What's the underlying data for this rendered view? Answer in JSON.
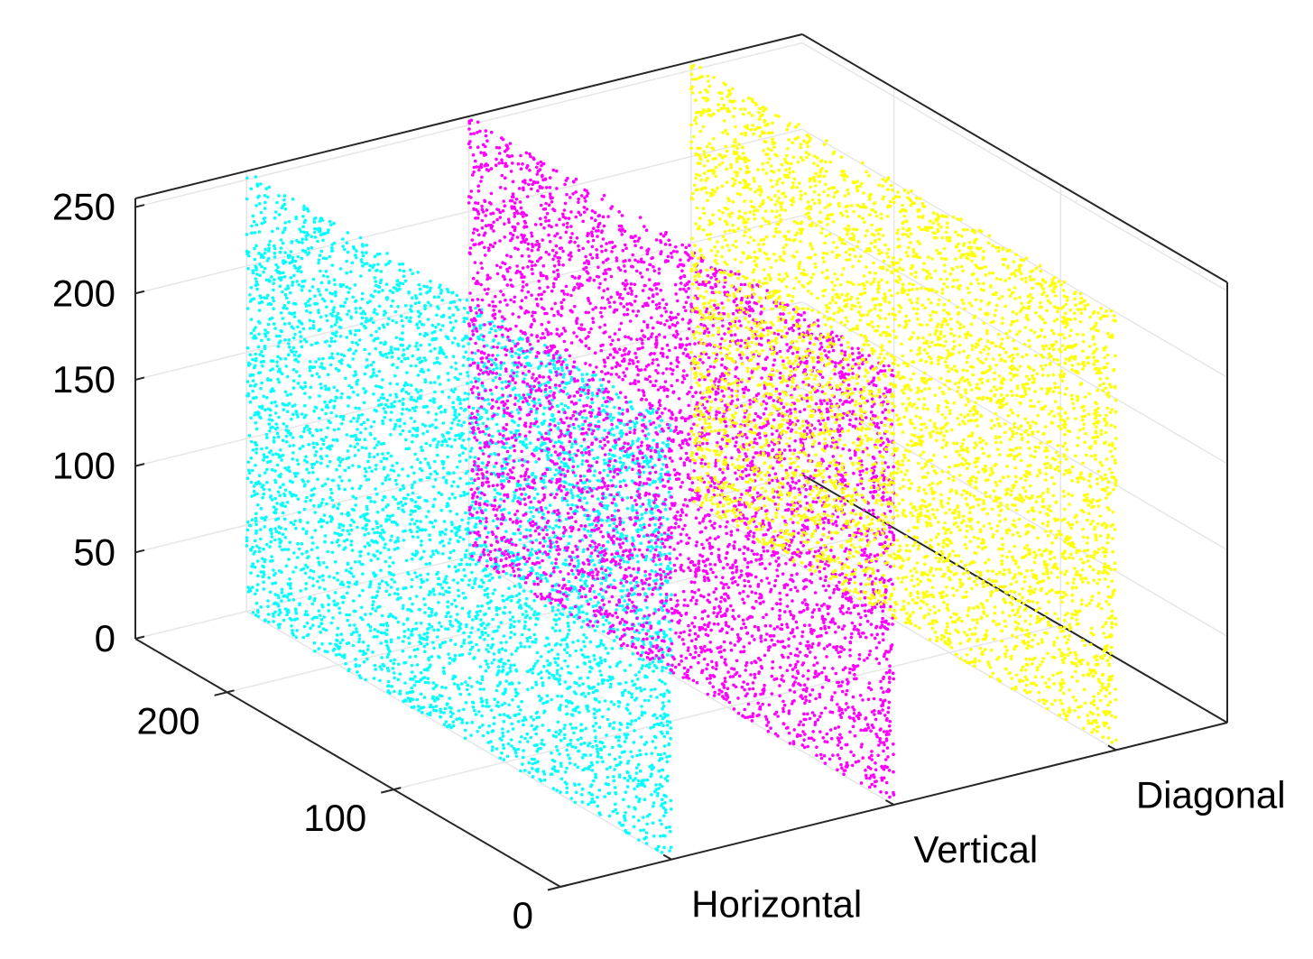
{
  "chart_data": {
    "type": "scatter",
    "dimensions": 3,
    "title": "",
    "xlabel": "",
    "ylabel": "",
    "zlabel": "",
    "x_categories": [
      "Horizontal",
      "Vertical",
      "Diagonal"
    ],
    "y_ticks": [
      0,
      100,
      200
    ],
    "z_ticks": [
      0,
      50,
      100,
      150,
      200,
      250
    ],
    "y_range": [
      0,
      255
    ],
    "z_range": [
      0,
      255
    ],
    "grid": true,
    "box": true,
    "point_density": 5000,
    "series": [
      {
        "category": "Horizontal",
        "color": "#00ffff",
        "y_range": [
          0,
          255
        ],
        "z_range": [
          0,
          255
        ]
      },
      {
        "category": "Vertical",
        "color": "#ff00ff",
        "y_range": [
          0,
          255
        ],
        "z_range": [
          0,
          255
        ]
      },
      {
        "category": "Diagonal",
        "color": "#ffff00",
        "y_range": [
          0,
          255
        ],
        "z_range": [
          0,
          255
        ]
      }
    ]
  }
}
